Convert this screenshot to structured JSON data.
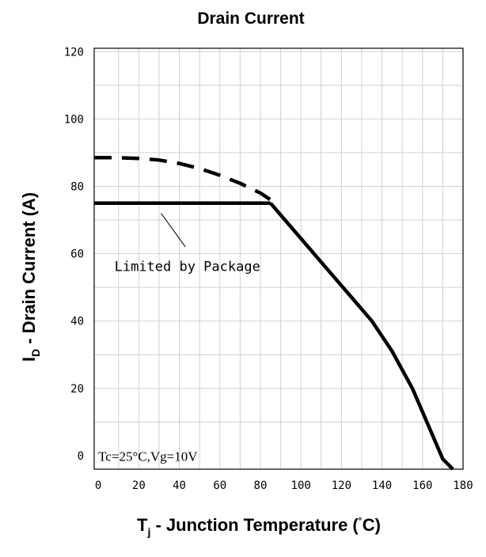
{
  "chart_data": {
    "type": "line",
    "title": "Drain Current",
    "xlabel": {
      "main": "T",
      "sub": "j",
      "rest": " - Junction Temperature (",
      "deg": "˚",
      "end": "C)"
    },
    "ylabel": {
      "main": "I",
      "sub": "D",
      "rest": " - Drain Current (A)"
    },
    "xlim": [
      -2,
      180
    ],
    "ylim": [
      -4,
      121
    ],
    "grid": true,
    "x_ticks": [
      0,
      20,
      40,
      60,
      80,
      100,
      120,
      140,
      160,
      180
    ],
    "y_ticks": [
      0,
      20,
      40,
      60,
      80,
      100,
      120
    ],
    "series": [
      {
        "style": "solid",
        "x": [
          -2,
          85
        ],
        "y": [
          75,
          75
        ]
      },
      {
        "style": "dashed",
        "x": [
          -2,
          10,
          20,
          30,
          40,
          50,
          60,
          70,
          80,
          85
        ],
        "y": [
          88.5,
          88.5,
          88.3,
          87.8,
          86.8,
          85.3,
          83.3,
          80.9,
          78,
          76
        ]
      },
      {
        "style": "solid",
        "x": [
          85,
          95,
          105,
          115,
          125,
          135,
          145,
          155,
          160,
          165,
          170,
          175
        ],
        "y": [
          75,
          68,
          61,
          54,
          47,
          40,
          31,
          20,
          13,
          6,
          -1,
          -4
        ]
      }
    ],
    "annotations": [
      {
        "text": "Limited by Package"
      },
      {
        "text": "Tc=25°C,Vg=10V"
      }
    ]
  }
}
